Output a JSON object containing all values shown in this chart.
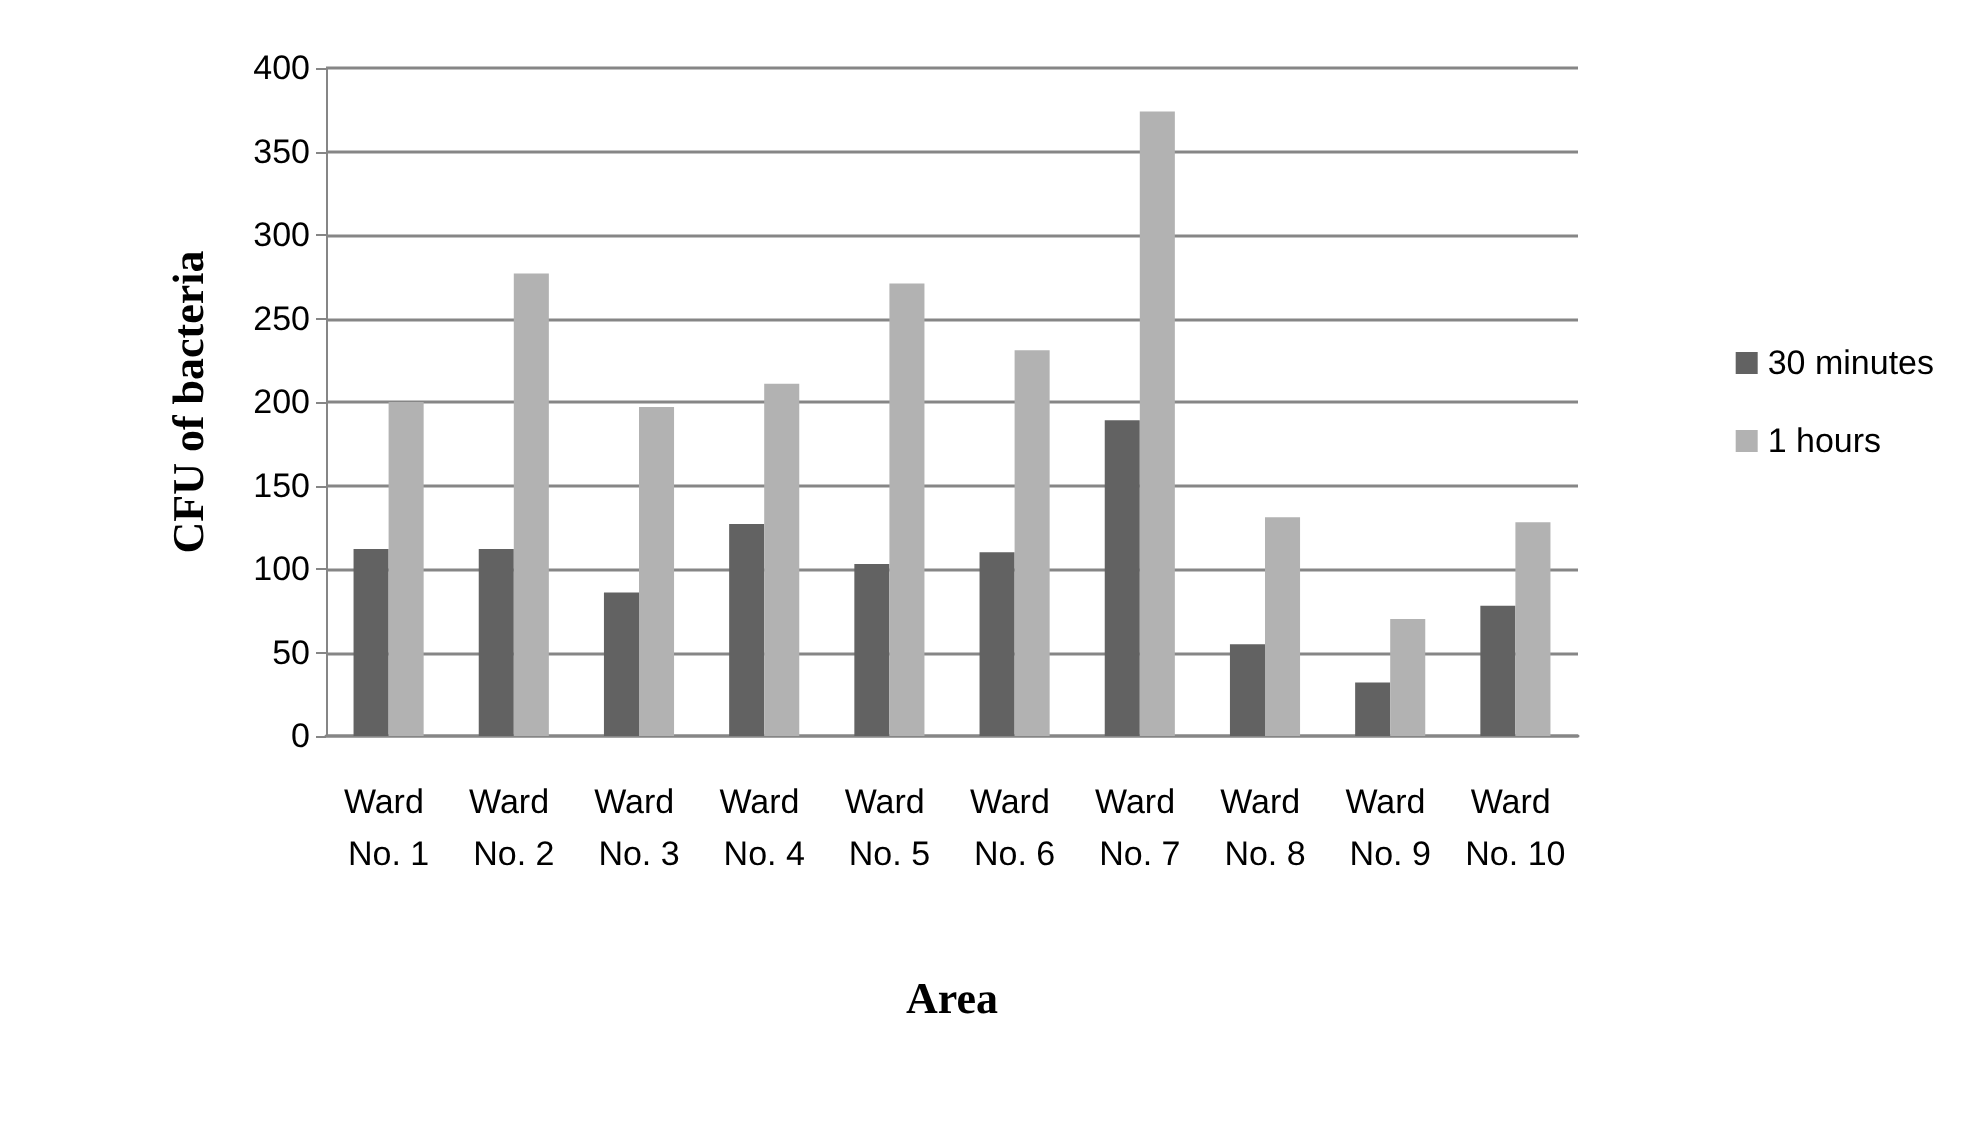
{
  "chart_data": {
    "type": "bar",
    "xlabel": "Area",
    "ylabel": "CFU of bacteria",
    "categories": [
      "Ward No. 1",
      "Ward No. 2",
      "Ward No. 3",
      "Ward No. 4",
      "Ward No. 5",
      "Ward No. 6",
      "Ward No. 7",
      "Ward No. 8",
      "Ward No. 9",
      "Ward No. 10"
    ],
    "series": [
      {
        "name": "30 minutes",
        "color": "#626262",
        "values": [
          112,
          112,
          86,
          127,
          103,
          110,
          189,
          55,
          32,
          78
        ]
      },
      {
        "name": "1 hours",
        "color": "#b2b2b2",
        "values": [
          200,
          277,
          197,
          211,
          271,
          231,
          374,
          131,
          70,
          128
        ]
      }
    ],
    "ylim": [
      0,
      400
    ],
    "yticks": [
      0,
      50,
      100,
      150,
      200,
      250,
      300,
      350,
      400
    ],
    "grid": "y",
    "legend": "right"
  }
}
